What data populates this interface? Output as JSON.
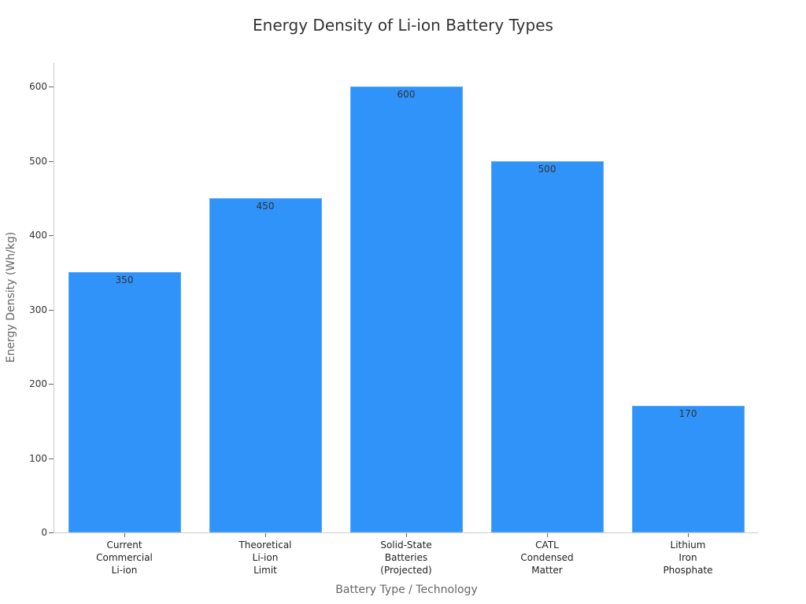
{
  "chart_data": {
    "type": "bar",
    "title": "Energy Density of Li-ion Battery Types",
    "xlabel": "Battery Type / Technology",
    "ylabel": "Energy Density (Wh/kg)",
    "categories": [
      [
        "Current",
        "Commercial",
        "Li-ion"
      ],
      [
        "Theoretical",
        "Li-ion",
        "Limit"
      ],
      [
        "Solid-State",
        "Batteries",
        "(Projected)"
      ],
      [
        "CATL",
        "Condensed",
        "Matter"
      ],
      [
        "Lithium",
        "Iron",
        "Phosphate"
      ]
    ],
    "values": [
      350,
      450,
      600,
      500,
      170
    ],
    "value_labels": [
      "350",
      "450",
      "600",
      "500",
      "170"
    ],
    "yticks": [
      "0",
      "100",
      "200",
      "300",
      "400",
      "500",
      "600"
    ],
    "ylim": [
      0,
      630
    ],
    "grid": false,
    "legend": null,
    "bar_color": "#2f93f9"
  }
}
